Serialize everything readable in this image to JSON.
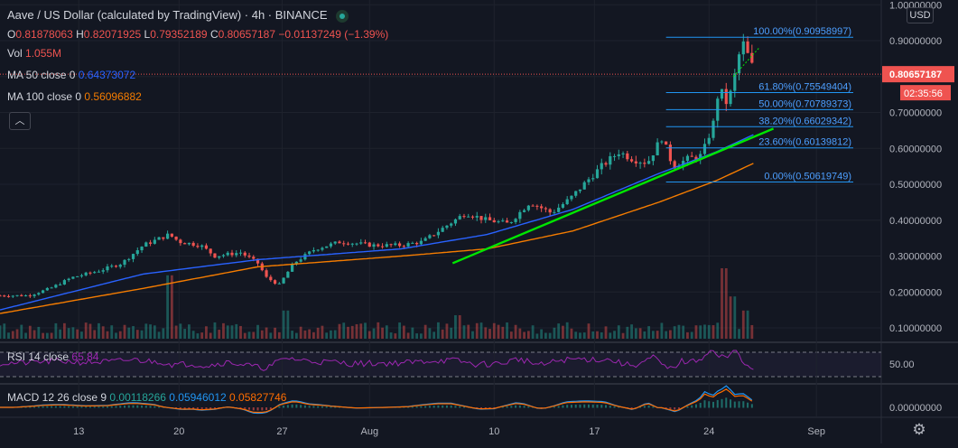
{
  "header": {
    "symbol_title": "Aave / US Dollar (calculated by TradingView) · 4h · BINANCE",
    "open_label": "O",
    "open": "0.81878063",
    "high_label": "H",
    "high": "0.82071925",
    "low_label": "L",
    "low": "0.79352189",
    "close_label": "C",
    "close": "0.80657187",
    "change": "−0.01137249 (−1.39%)",
    "vol_label": "Vol",
    "vol": "1.055M",
    "ma50_label": "MA 50 close 0",
    "ma50": "0.64373072",
    "ma100_label": "MA 100 close 0",
    "ma100": "0.56096882"
  },
  "indicators": {
    "rsi_label": "RSI 14 close",
    "rsi": "65.84",
    "macd_label": "MACD 12 26 close 9",
    "macd_hist": "0.00118266",
    "macd": "0.05946012",
    "macd_signal": "0.05827746"
  },
  "price_scale": {
    "currency": "USD",
    "current_price": "0.80657187",
    "countdown": "02:35:56",
    "rsi_tick": "50.00",
    "macd_tick": "0.00000000"
  },
  "colors": {
    "background": "#131722",
    "up": "#26a69a",
    "down": "#ef5350",
    "ma50": "#2962ff",
    "ma100": "#f57c00",
    "trendline": "#00e600",
    "fib": "#2196f3",
    "rsi": "#9c27b0",
    "macd": "#2196f3",
    "signal": "#ff6d00"
  },
  "chart_data": {
    "type": "candlestick",
    "title": "Aave / US Dollar (calculated by TradingView) · 4h · BINANCE",
    "x_ticks": [
      "13",
      "20",
      "27",
      "Aug",
      "10",
      "17",
      "24",
      "Sep"
    ],
    "y_ticks": [
      "1.00000000",
      "0.90000000",
      "0.80000000",
      "0.70000000",
      "0.60000000",
      "0.50000000",
      "0.40000000",
      "0.30000000",
      "0.20000000",
      "0.10000000"
    ],
    "ylim": [
      0.05,
      1.02
    ],
    "x_axis": "bar index (4h bars), tick labels are dates",
    "price_path": [
      [
        0,
        0.19
      ],
      [
        20,
        0.19
      ],
      [
        35,
        0.21
      ],
      [
        50,
        0.24
      ],
      [
        70,
        0.26
      ],
      [
        85,
        0.28
      ],
      [
        100,
        0.33
      ],
      [
        118,
        0.36
      ],
      [
        125,
        0.34
      ],
      [
        140,
        0.33
      ],
      [
        150,
        0.3
      ],
      [
        168,
        0.31
      ],
      [
        180,
        0.28
      ],
      [
        186,
        0.24
      ],
      [
        195,
        0.22
      ],
      [
        205,
        0.28
      ],
      [
        220,
        0.32
      ],
      [
        238,
        0.34
      ],
      [
        260,
        0.33
      ],
      [
        280,
        0.33
      ],
      [
        295,
        0.34
      ],
      [
        310,
        0.38
      ],
      [
        325,
        0.42
      ],
      [
        340,
        0.4
      ],
      [
        355,
        0.39
      ],
      [
        370,
        0.45
      ],
      [
        385,
        0.42
      ],
      [
        398,
        0.46
      ],
      [
        410,
        0.51
      ],
      [
        420,
        0.55
      ],
      [
        432,
        0.59
      ],
      [
        442,
        0.57
      ],
      [
        452,
        0.56
      ],
      [
        462,
        0.63
      ],
      [
        470,
        0.55
      ],
      [
        480,
        0.57
      ],
      [
        490,
        0.58
      ],
      [
        498,
        0.67
      ],
      [
        502,
        0.77
      ],
      [
        508,
        0.72
      ],
      [
        514,
        0.82
      ],
      [
        518,
        0.9
      ],
      [
        522,
        0.86
      ],
      [
        527,
        0.81
      ]
    ],
    "ma50": [
      [
        0,
        0.15
      ],
      [
        100,
        0.25
      ],
      [
        180,
        0.29
      ],
      [
        280,
        0.32
      ],
      [
        340,
        0.36
      ],
      [
        400,
        0.43
      ],
      [
        460,
        0.53
      ],
      [
        500,
        0.59
      ],
      [
        527,
        0.64
      ]
    ],
    "ma100": [
      [
        0,
        0.14
      ],
      [
        100,
        0.21
      ],
      [
        180,
        0.27
      ],
      [
        280,
        0.3
      ],
      [
        340,
        0.32
      ],
      [
        400,
        0.37
      ],
      [
        460,
        0.45
      ],
      [
        500,
        0.51
      ],
      [
        527,
        0.56
      ]
    ],
    "volume_spikes": [
      [
        118,
        0.27
      ],
      [
        200,
        0.12
      ],
      [
        320,
        0.1
      ],
      [
        505,
        0.3
      ],
      [
        512,
        0.18
      ],
      [
        520,
        0.12
      ]
    ],
    "fib_levels": [
      {
        "label": "100.00%(0.90958997)",
        "value": 0.90958997
      },
      {
        "label": "61.80%(0.75549404)",
        "value": 0.75549404
      },
      {
        "label": "50.00%(0.70789373)",
        "value": 0.70789373
      },
      {
        "label": "38.20%(0.66029342)",
        "value": 0.66029342
      },
      {
        "label": "23.60%(0.60139812)",
        "value": 0.60139812
      },
      {
        "label": "0.00%(0.50619749)",
        "value": 0.50619749
      }
    ],
    "fib_range_bars": [
      465,
      527
    ],
    "trendline": [
      [
        316,
        0.28
      ],
      [
        540,
        0.655
      ]
    ],
    "current_price": 0.80657187
  }
}
